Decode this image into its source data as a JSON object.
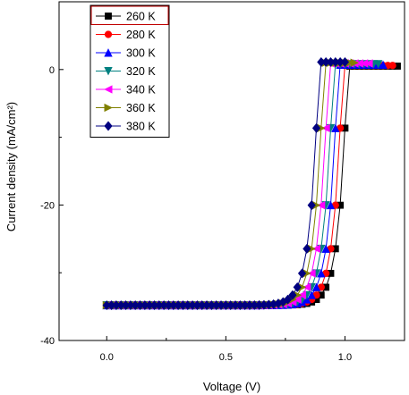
{
  "chart_data": {
    "type": "line",
    "title": "",
    "xlabel": "Voltage (V)",
    "ylabel": "Current density (mA/cm²)",
    "xlim": [
      -0.2,
      1.25
    ],
    "ylim": [
      -40,
      10
    ],
    "x_ticks": [
      {
        "value": 0,
        "label": "0.0"
      },
      {
        "value": 0.5,
        "label": "0.5"
      },
      {
        "value": 1.0,
        "label": "1.0"
      }
    ],
    "y_ticks": [
      {
        "value": 0,
        "label": "0"
      },
      {
        "value": -20,
        "label": "-20"
      },
      {
        "value": -40,
        "label": "-40"
      }
    ],
    "grid": false,
    "legend_position": "top-left",
    "series": [
      {
        "name": "260 K",
        "color": "#000000",
        "marker": "square",
        "x_end": 1.22,
        "voc": 1.01,
        "jsc": -34.8
      },
      {
        "name": "280 K",
        "color": "#ff0000",
        "marker": "circle",
        "x_end": 1.2,
        "voc": 0.99,
        "jsc": -34.8
      },
      {
        "name": "300 K",
        "color": "#0000ff",
        "marker": "triangle-up",
        "x_end": 1.17,
        "voc": 0.97,
        "jsc": -34.8
      },
      {
        "name": "320 K",
        "color": "#008080",
        "marker": "triangle-down",
        "x_end": 1.15,
        "voc": 0.95,
        "jsc": -34.8
      },
      {
        "name": "340 K",
        "color": "#ff00ff",
        "marker": "triangle-left",
        "x_end": 1.1,
        "voc": 0.93,
        "jsc": -34.8
      },
      {
        "name": "360 K",
        "color": "#808000",
        "marker": "triangle-right",
        "x_end": 1.05,
        "voc": 0.91,
        "jsc": -34.8
      },
      {
        "name": "380 K",
        "color": "#000080",
        "marker": "diamond",
        "x_end": 1.0,
        "voc": 0.89,
        "jsc": -34.8
      }
    ]
  }
}
